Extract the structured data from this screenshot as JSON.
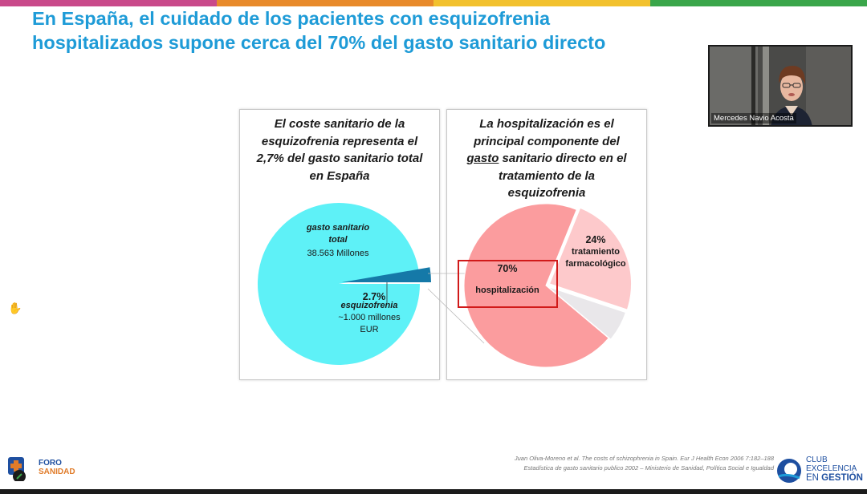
{
  "slide": {
    "title_line1": "En España, el cuidado de los pacientes con esquizofrenia",
    "title_line2": "hospitalizados supone cerca del 70% del gasto sanitario directo",
    "accent_colors": [
      "#c9498a",
      "#e88a2b",
      "#f2c12e",
      "#3aa64a"
    ],
    "title_color": "#1e9bd7"
  },
  "video": {
    "caption": "Mercedes Navio Acosta"
  },
  "chart_data": [
    {
      "type": "pie",
      "title_lines": [
        "El coste sanitario de la",
        "esquizofrenia representa  el",
        "2,7% del gasto sanitario total",
        "en España"
      ],
      "slices": [
        {
          "label": "gasto sanitario total",
          "label_line1": "gasto sanitario",
          "label_line2": "total",
          "value_text": "38.563 Millones",
          "percent": 97.3,
          "color": "#5ef1f7"
        },
        {
          "label": "esquizofrenia",
          "percent": 2.7,
          "percent_text": "2,7%",
          "value_text_line1": "~1.000 millones",
          "value_text_line2": "EUR",
          "color": "#1579a8"
        }
      ]
    },
    {
      "type": "pie",
      "title_lines": [
        "La hospitalización es el",
        "principal componente del",
        "gasto sanitario directo en el",
        "tratamiento de la",
        "esquizofrenia"
      ],
      "title_underlined_word": "gasto",
      "slices": [
        {
          "label": "hospitalización",
          "percent": 70,
          "percent_text": "70%",
          "color": "#fb9c9e",
          "highlighted": true
        },
        {
          "label": "tratamiento farmacológico",
          "label_line1": "tratamiento",
          "label_line2": "farmacológico",
          "percent": 24,
          "percent_text": "24%",
          "color": "#fdc9cb"
        },
        {
          "label": "",
          "percent": 6,
          "color": "#e9e7ea"
        }
      ]
    }
  ],
  "citation": {
    "line1": "Juan Oliva-Moreno et al. The costs of schizophrenia in Spain. Eur J Health Econ 2006 7:182–188",
    "line2": "Estadística de gasto sanitario publico 2002 – Ministerio de Sanidad, Política Social e Igualdad"
  },
  "logos": {
    "left_line1": "FORO",
    "left_line2": "SANIDAD",
    "right_line1": "CLUB",
    "right_line2": "EXCELENCIA",
    "right_line3_prefix": "EN ",
    "right_line3_bold": "GESTIÓN"
  }
}
